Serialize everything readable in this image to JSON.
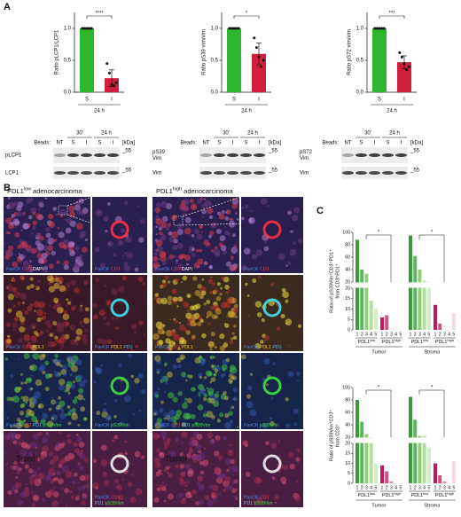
{
  "panel_a": {
    "label": "A",
    "blots": [
      {
        "beads": "Beads:",
        "unit": "[kDa]",
        "times": [
          "30'",
          "24 h"
        ],
        "lanes": [
          "NT",
          "S",
          "I",
          "S",
          "I"
        ],
        "rows": [
          {
            "label": [
              "pLCP1"
            ],
            "marker": "_55"
          },
          {
            "label": [
              "LCP1"
            ],
            "marker": "_55"
          }
        ]
      },
      {
        "beads": "Beads:",
        "unit": "[kDa]",
        "times": [
          "30'",
          "24 h"
        ],
        "lanes": [
          "NT",
          "S",
          "I",
          "S",
          "I"
        ],
        "rows": [
          {
            "label": [
              "pS39",
              "Vim"
            ],
            "marker": "_55"
          },
          {
            "label": [
              "Vim"
            ],
            "marker": "_55"
          }
        ]
      },
      {
        "beads": "Beads:",
        "unit": "[kDa]",
        "times": [
          "30'",
          "24 h"
        ],
        "lanes": [
          "NT",
          "S",
          "I",
          "S",
          "I"
        ],
        "rows": [
          {
            "label": [
              "pS72",
              "Vim"
            ],
            "marker": "_55"
          },
          {
            "label": [
              "Vim"
            ],
            "marker": "_55"
          }
        ]
      }
    ]
  },
  "chart_data": [
    {
      "type": "bar",
      "ylabel": "Ratio pLCP1/LCP1",
      "categories": [
        "S",
        "I"
      ],
      "group_label": "24 h",
      "values": [
        1.0,
        0.22
      ],
      "errors": [
        0,
        0.13
      ],
      "points": [
        [
          1,
          1,
          1,
          1,
          1
        ],
        [
          0.45,
          0.3,
          0.12,
          0.1,
          0.15
        ]
      ],
      "colors": [
        "#2db52d",
        "#cf1f3c"
      ],
      "ylim": [
        0,
        1.25
      ],
      "yticks": [
        {
          "value": 0,
          "label": "0.0"
        },
        {
          "value": 0.5,
          "label": "0.5"
        },
        {
          "value": 1,
          "label": "1.0"
        }
      ],
      "significance": "****"
    },
    {
      "type": "bar",
      "ylabel": "Ratio pS39 vim/vim",
      "categories": [
        "S",
        "I"
      ],
      "group_label": "24 h",
      "values": [
        1.0,
        0.6
      ],
      "errors": [
        0,
        0.17
      ],
      "points": [
        [
          1,
          1,
          1,
          1,
          1
        ],
        [
          0.85,
          0.7,
          0.55,
          0.4,
          0.5
        ]
      ],
      "colors": [
        "#2db52d",
        "#cf1f3c"
      ],
      "ylim": [
        0,
        1.25
      ],
      "yticks": [
        {
          "value": 0,
          "label": "0.0"
        },
        {
          "value": 0.5,
          "label": "0.5"
        },
        {
          "value": 1,
          "label": "1.0"
        }
      ],
      "significance": "*"
    },
    {
      "type": "bar",
      "ylabel": "Ratio pS72 vim/vim",
      "categories": [
        "S",
        "I"
      ],
      "group_label": "24 h",
      "values": [
        1.0,
        0.47
      ],
      "errors": [
        0,
        0.1
      ],
      "points": [
        [
          1,
          1,
          1,
          1,
          1
        ],
        [
          0.62,
          0.55,
          0.45,
          0.35,
          0.4
        ]
      ],
      "colors": [
        "#2db52d",
        "#cf1f3c"
      ],
      "ylim": [
        0,
        1.25
      ],
      "yticks": [
        {
          "value": 0,
          "label": "0.0"
        },
        {
          "value": 0.5,
          "label": "0.5"
        },
        {
          "value": 1,
          "label": "1.0"
        }
      ],
      "significance": "***"
    },
    {
      "type": "broken_bar",
      "ylabel": [
        "Ratio of pS39Vim⁺CD3⁺PD1⁺",
        "from CD3⁺PD1⁺"
      ],
      "ylim": [
        0,
        100
      ],
      "ybreak": 20,
      "yticks": [
        0,
        5,
        10,
        15,
        20,
        40,
        60,
        80,
        100
      ],
      "categories": [
        "1",
        "2",
        "3",
        "4",
        "5"
      ],
      "groups": [
        {
          "name": "Tumor",
          "significance": "*",
          "subgroups": [
            {
              "name": "PDL1",
              "sup": "low",
              "values": [
                88,
                40,
                33,
                14,
                10
              ],
              "colors": [
                "#3a9a3a",
                "#5cb85c",
                "#8fce7a",
                "#b5dfa0",
                "#d4ecc8"
              ]
            },
            {
              "name": "PDL1",
              "sup": "high",
              "values": [
                6,
                7,
                0,
                0,
                0
              ],
              "colors": [
                "#c2185b",
                "#d0507e",
                "#e08aa8",
                "#ecb3c8",
                "#f6d6e2"
              ]
            }
          ]
        },
        {
          "name": "Stroma",
          "significance": "*",
          "subgroups": [
            {
              "name": "PDL1",
              "sup": "low",
              "values": [
                95,
                62,
                40,
                22,
                20
              ],
              "colors": [
                "#3a9a3a",
                "#5cb85c",
                "#8fce7a",
                "#b5dfa0",
                "#d4ecc8"
              ]
            },
            {
              "name": "PDL1",
              "sup": "high",
              "values": [
                12,
                3,
                0,
                0,
                8
              ],
              "colors": [
                "#c2185b",
                "#d0507e",
                "#e08aa8",
                "#ecb3c8",
                "#f6d6e2"
              ]
            }
          ]
        }
      ]
    },
    {
      "type": "broken_bar",
      "ylabel": [
        "Ratio of pS39Vim⁺CD3⁺",
        "from CD3⁺"
      ],
      "ylim": [
        0,
        100
      ],
      "ybreak": 20,
      "yticks": [
        0,
        5,
        10,
        15,
        20,
        40,
        60,
        80,
        100
      ],
      "categories": [
        "1",
        "2",
        "3",
        "4",
        "5"
      ],
      "groups": [
        {
          "name": "Tumor",
          "significance": "*",
          "subgroups": [
            {
              "name": "PDL1",
              "sup": "low",
              "values": [
                80,
                45,
                25,
                20,
                10
              ],
              "colors": [
                "#3a9a3a",
                "#5cb85c",
                "#8fce7a",
                "#b5dfa0",
                "#d4ecc8"
              ]
            },
            {
              "name": "PDL1",
              "sup": "high",
              "values": [
                9,
                6,
                1,
                0,
                0
              ],
              "colors": [
                "#c2185b",
                "#d0507e",
                "#e08aa8",
                "#ecb3c8",
                "#f6d6e2"
              ]
            }
          ]
        },
        {
          "name": "Stroma",
          "significance": "*",
          "subgroups": [
            {
              "name": "PDL1",
              "sup": "low",
              "values": [
                85,
                48,
                22,
                22,
                18
              ],
              "colors": [
                "#3a9a3a",
                "#5cb85c",
                "#8fce7a",
                "#b5dfa0",
                "#d4ecc8"
              ]
            },
            {
              "name": "PDL1",
              "sup": "high",
              "values": [
                10,
                4,
                1,
                0,
                11
              ],
              "colors": [
                "#c2185b",
                "#d0507e",
                "#e08aa8",
                "#ecb3c8",
                "#f6d6e2"
              ]
            }
          ]
        }
      ]
    }
  ],
  "panel_b": {
    "label": "B",
    "columns": [
      {
        "title": {
          "text": "PDL1",
          "sup": "low",
          "rest": "adenocarcinoma"
        },
        "rows": [
          {
            "main": [
              [
                {
                  "text": "PanCK",
                  "color": "#4a86e8"
                },
                {
                  "text": "CD3",
                  "color": "#ff3030"
                },
                {
                  "text": "DAPI",
                  "color": "#ffffff"
                }
              ]
            ],
            "zoom": [
              [
                {
                  "text": "PanCK",
                  "color": "#4a86e8"
                },
                {
                  "text": "CD3",
                  "color": "#ff3030"
                }
              ]
            ]
          },
          {
            "main": [
              [
                {
                  "text": "PanCK",
                  "color": "#4a86e8"
                },
                {
                  "text": "CD3",
                  "color": "#ff3030"
                },
                {
                  "text": "PDL1",
                  "color": "#f0d020"
                }
              ]
            ],
            "zoom": [
              [
                {
                  "text": "PanCK",
                  "color": "#4a86e8"
                },
                {
                  "text": "PDL1",
                  "color": "#f0d020"
                },
                {
                  "text": "PD1",
                  "color": "#40c8ff"
                }
              ]
            ]
          },
          {
            "main": [
              [
                {
                  "text": "PanCK",
                  "color": "#4a86e8"
                },
                {
                  "text": "CD3",
                  "color": "#ff3030"
                },
                {
                  "text": "PD1",
                  "color": "#40c8ff"
                },
                {
                  "text": "pS39Vim",
                  "color": "#40e040"
                }
              ]
            ],
            "zoom": [
              [
                {
                  "text": "PanCK",
                  "color": "#4a86e8"
                },
                {
                  "text": "pS39Vim",
                  "color": "#40e040"
                }
              ]
            ]
          },
          {
            "annotation": "Tumor",
            "zoom": [
              [
                {
                  "text": "PanCK",
                  "color": "#4a86e8"
                },
                {
                  "text": "CD3",
                  "color": "#ff3030"
                }
              ],
              [
                {
                  "text": "PD1",
                  "color": "#40c8ff"
                },
                {
                  "text": "pS39Vim",
                  "color": "#40e040"
                }
              ]
            ]
          }
        ]
      },
      {
        "title": {
          "text": "PDL1",
          "sup": "high",
          "rest": "adenocarcinoma"
        },
        "rows": [
          {
            "main": [
              [
                {
                  "text": "PanCK",
                  "color": "#4a86e8"
                },
                {
                  "text": "CD3",
                  "color": "#ff3030"
                },
                {
                  "text": "DAPI",
                  "color": "#ffffff"
                }
              ]
            ],
            "zoom": [
              [
                {
                  "text": "PanCK",
                  "color": "#4a86e8"
                },
                {
                  "text": "CD3",
                  "color": "#ff3030"
                }
              ]
            ]
          },
          {
            "main": [
              [
                {
                  "text": "PanCK",
                  "color": "#4a86e8"
                },
                {
                  "text": "CD3",
                  "color": "#ff3030"
                },
                {
                  "text": "PDL1",
                  "color": "#f0d020"
                }
              ]
            ],
            "zoom": [
              [
                {
                  "text": "PanCK",
                  "color": "#4a86e8"
                },
                {
                  "text": "PDL1",
                  "color": "#f0d020"
                },
                {
                  "text": "PD1",
                  "color": "#40c8ff"
                }
              ]
            ]
          },
          {
            "main": [
              [
                {
                  "text": "PanCK",
                  "color": "#4a86e8"
                },
                {
                  "text": "CD3",
                  "color": "#ff3030"
                },
                {
                  "text": "PD1",
                  "color": "#40c8ff"
                },
                {
                  "text": "pS39Vim",
                  "color": "#40e040"
                }
              ]
            ],
            "zoom": [
              [
                {
                  "text": "PanCK",
                  "color": "#4a86e8"
                },
                {
                  "text": "pS39Vim",
                  "color": "#40e040"
                }
              ]
            ]
          },
          {
            "annotation": "Tumor",
            "zoom": [
              [
                {
                  "text": "PanCK",
                  "color": "#4a86e8"
                },
                {
                  "text": "CD3",
                  "color": "#ff3030"
                }
              ],
              [
                {
                  "text": "PD1",
                  "color": "#40c8ff"
                },
                {
                  "text": "pS39Vim",
                  "color": "#40e040"
                }
              ]
            ]
          }
        ]
      }
    ]
  },
  "panel_c": {
    "label": "C"
  }
}
